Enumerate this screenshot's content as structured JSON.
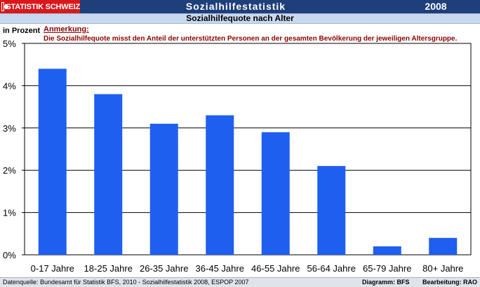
{
  "header": {
    "logo_text": "STATISTIK SCHWEIZ",
    "title": "Sozialhilfestatistik",
    "year": "2008"
  },
  "subtitle": "Sozialhilfequote nach Alter",
  "unit_label": "in Prozent",
  "note": {
    "title": "Anmerkung:",
    "text": "Die Sozialhilfequote misst den Anteil der unterstützten Personen an der gesamten Bevölkerung der jeweiligen Altersgruppe."
  },
  "footer": {
    "source": "Datenquelle: Bundesamt für Statistik BFS, 2010 - Sozialhilfestatistik 2008, ESPOP 2007",
    "diagram": "Diagramm: BFS",
    "editing": "Bearbeitung: RAO"
  },
  "colors": {
    "bar": "#1f5ff0",
    "grid": "#000000",
    "header": "#1f3f7a",
    "logo": "#d8181c"
  },
  "chart_data": {
    "type": "bar",
    "title": "Sozialhilfequote nach Alter",
    "ylabel": "in Prozent",
    "categories": [
      "0-17 Jahre",
      "18-25 Jahre",
      "26-35 Jahre",
      "36-45 Jahre",
      "46-55 Jahre",
      "56-64 Jahre",
      "65-79 Jahre",
      "80+ Jahre"
    ],
    "values": [
      4.4,
      3.8,
      3.1,
      3.3,
      2.9,
      2.1,
      0.2,
      0.4
    ],
    "ylim": [
      0,
      5
    ],
    "yticks": [
      "0%",
      "1%",
      "2%",
      "3%",
      "4%",
      "5%"
    ],
    "grid": true
  }
}
